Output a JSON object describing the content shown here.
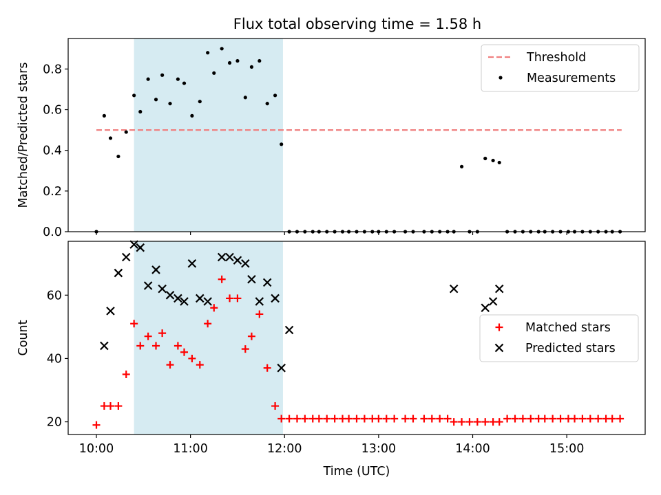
{
  "title": "Flux total observing time = 1.58 h",
  "colors": {
    "threshold": "#f08080",
    "measurement": "#000000",
    "matched": "#ff0000",
    "predicted": "#000000",
    "shade": "#add8e6"
  },
  "chart_data": [
    {
      "type": "scatter",
      "name": "ratio-panel",
      "title": "",
      "xlabel": "",
      "ylabel": "Matched/Predicted stars",
      "xlim": [
        "09:42",
        "15:50"
      ],
      "ylim": [
        0,
        0.95
      ],
      "x_ticks": [
        "10:00",
        "11:00",
        "12:00",
        "13:00",
        "14:00",
        "15:00"
      ],
      "y_ticks": [
        "0.0",
        "0.2",
        "0.4",
        "0.6",
        "0.8"
      ],
      "y_tick_values": [
        0,
        0.2,
        0.4,
        0.6,
        0.8
      ],
      "shaded_interval": [
        "10:24",
        "11:59"
      ],
      "legend_position": "upper right",
      "threshold": {
        "name": "Threshold",
        "y": 0.5,
        "x_range": [
          "10:00",
          "15:35"
        ]
      },
      "series": [
        {
          "name": "Measurements",
          "x": [
            "10:00",
            "10:05",
            "10:09",
            "10:14",
            "10:19",
            "10:24",
            "10:28",
            "10:33",
            "10:38",
            "10:42",
            "10:47",
            "10:52",
            "10:56",
            "11:01",
            "11:06",
            "11:11",
            "11:15",
            "11:20",
            "11:25",
            "11:30",
            "11:35",
            "11:39",
            "11:44",
            "11:49",
            "11:54",
            "11:58",
            "12:03",
            "12:08",
            "12:13",
            "12:18",
            "12:22",
            "12:27",
            "12:32",
            "12:37",
            "12:41",
            "12:46",
            "12:51",
            "12:56",
            "13:00",
            "13:05",
            "13:10",
            "13:17",
            "13:22",
            "13:29",
            "13:34",
            "13:39",
            "13:44",
            "13:48",
            "13:53",
            "13:58",
            "14:03",
            "14:08",
            "14:13",
            "14:17",
            "14:22",
            "14:27",
            "14:32",
            "14:37",
            "14:42",
            "14:46",
            "14:51",
            "14:56",
            "15:01",
            "15:05",
            "15:10",
            "15:15",
            "15:20",
            "15:25",
            "15:29",
            "15:34"
          ],
          "y": [
            0,
            0.57,
            0.46,
            0.37,
            0.49,
            0.67,
            0.59,
            0.75,
            0.65,
            0.77,
            0.63,
            0.75,
            0.73,
            0.57,
            0.64,
            0.88,
            0.78,
            0.9,
            0.83,
            0.84,
            0.66,
            0.81,
            0.84,
            0.63,
            0.67,
            0.43,
            0,
            0,
            0,
            0,
            0,
            0,
            0,
            0,
            0,
            0,
            0,
            0,
            0,
            0,
            0,
            0,
            0,
            0,
            0,
            0,
            0,
            0,
            0.32,
            0,
            0,
            0.36,
            0.35,
            0.34,
            0,
            0,
            0,
            0,
            0,
            0,
            0,
            0,
            0,
            0,
            0,
            0,
            0,
            0,
            0,
            0
          ]
        }
      ]
    },
    {
      "type": "scatter",
      "name": "count-panel",
      "title": "",
      "xlabel": "Time (UTC)",
      "ylabel": "Count",
      "xlim": [
        "09:42",
        "15:50"
      ],
      "ylim": [
        16,
        77
      ],
      "x_ticks": [
        "10:00",
        "11:00",
        "12:00",
        "13:00",
        "14:00",
        "15:00"
      ],
      "y_ticks": [
        "20",
        "40",
        "60"
      ],
      "y_tick_values": [
        20,
        40,
        60
      ],
      "shaded_interval": [
        "10:24",
        "11:59"
      ],
      "legend_position": "center right",
      "series": [
        {
          "name": "Matched stars",
          "x": [
            "10:00",
            "10:05",
            "10:09",
            "10:14",
            "10:19",
            "10:24",
            "10:28",
            "10:33",
            "10:38",
            "10:42",
            "10:47",
            "10:52",
            "10:56",
            "11:01",
            "11:06",
            "11:11",
            "11:15",
            "11:20",
            "11:25",
            "11:30",
            "11:35",
            "11:39",
            "11:44",
            "11:49",
            "11:54",
            "11:58",
            "12:03",
            "12:08",
            "12:13",
            "12:18",
            "12:22",
            "12:27",
            "12:32",
            "12:37",
            "12:41",
            "12:46",
            "12:51",
            "12:56",
            "13:00",
            "13:05",
            "13:10",
            "13:17",
            "13:22",
            "13:29",
            "13:34",
            "13:39",
            "13:44",
            "13:48",
            "13:53",
            "13:58",
            "14:03",
            "14:08",
            "14:13",
            "14:17",
            "14:22",
            "14:27",
            "14:32",
            "14:37",
            "14:42",
            "14:46",
            "14:51",
            "14:56",
            "15:01",
            "15:05",
            "15:10",
            "15:15",
            "15:20",
            "15:25",
            "15:29",
            "15:34"
          ],
          "y": [
            19,
            25,
            25,
            25,
            35,
            51,
            44,
            47,
            44,
            48,
            38,
            44,
            42,
            40,
            38,
            51,
            56,
            65,
            59,
            59,
            43,
            47,
            54,
            37,
            25,
            21,
            21,
            21,
            21,
            21,
            21,
            21,
            21,
            21,
            21,
            21,
            21,
            21,
            21,
            21,
            21,
            21,
            21,
            21,
            21,
            21,
            21,
            20,
            20,
            20,
            20,
            20,
            20,
            20,
            21,
            21,
            21,
            21,
            21,
            21,
            21,
            21,
            21,
            21,
            21,
            21,
            21,
            21,
            21,
            21
          ]
        },
        {
          "name": "Predicted stars",
          "x": [
            "10:05",
            "10:09",
            "10:14",
            "10:19",
            "10:24",
            "10:28",
            "10:33",
            "10:38",
            "10:42",
            "10:47",
            "10:52",
            "10:56",
            "11:01",
            "11:06",
            "11:11",
            "11:20",
            "11:25",
            "11:30",
            "11:35",
            "11:39",
            "11:44",
            "11:49",
            "11:54",
            "11:58",
            "12:03",
            "13:48",
            "14:08",
            "14:13",
            "14:17"
          ],
          "y": [
            44,
            55,
            67,
            72,
            76,
            75,
            63,
            68,
            62,
            60,
            59,
            58,
            70,
            59,
            58,
            72,
            72,
            71,
            70,
            65,
            58,
            64,
            59,
            37,
            49,
            62,
            56,
            58,
            62
          ]
        }
      ]
    }
  ]
}
